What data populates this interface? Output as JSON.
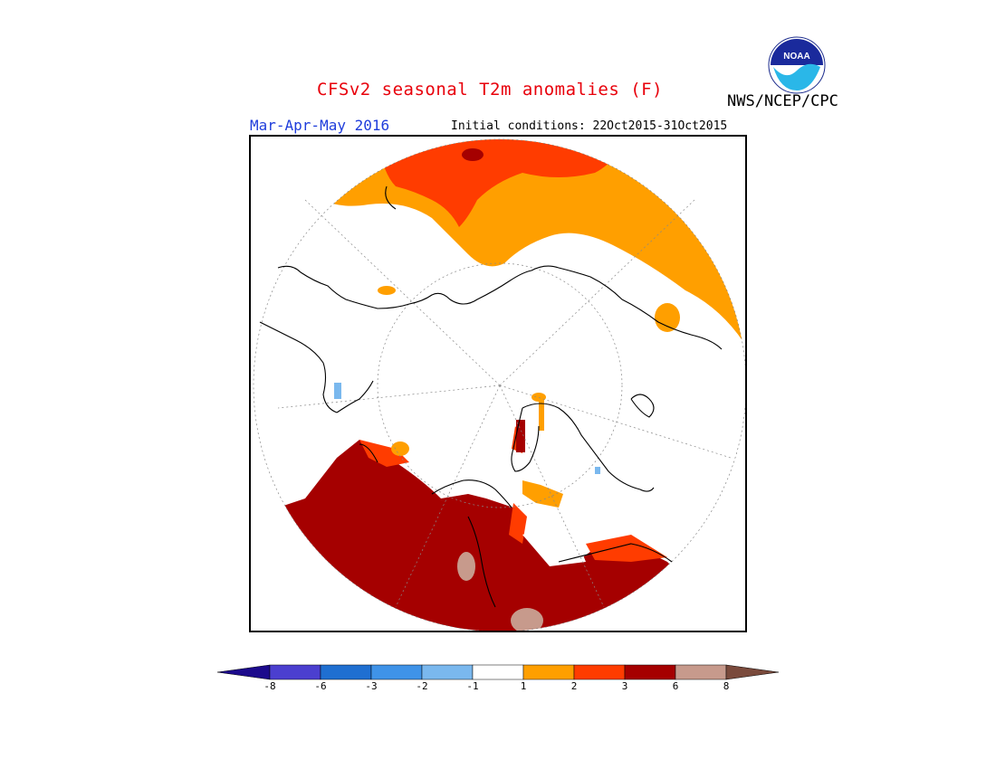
{
  "header": {
    "title": "CFSv2 seasonal T2m anomalies (F)",
    "agency": "NWS/NCEP/CPC",
    "logo_text": "NOAA",
    "season": "Mar-Apr-May 2016",
    "initial_conditions": "Initial conditions: 22Oct2015-31Oct2015"
  },
  "legend": {
    "ticks": [
      "-8",
      "-6",
      "-3",
      "-2",
      "-1",
      "1",
      "2",
      "3",
      "6",
      "8"
    ],
    "colors": [
      "#1c0a8c",
      "#4b3fcf",
      "#1f6fd1",
      "#3f93e8",
      "#7ab8ee",
      "#ffffff",
      "#ff9f00",
      "#ff3c00",
      "#a50000",
      "#c79a8c",
      "#7a4a3c"
    ]
  },
  "map": {
    "projection": "north-polar-stereographic",
    "anomaly_regions": [
      {
        "region": "eastern-north-america-east-canada",
        "category": "2 to 3 F"
      },
      {
        "region": "greenland-north-atlantic-edge",
        "category": "1 to 2 F"
      },
      {
        "region": "northern-europe-scandinavia",
        "category": "1 to 2 F"
      },
      {
        "region": "western-siberia-russia",
        "category": "3 to 6 F"
      },
      {
        "region": "central-east-asia",
        "category": "3 to 8 F"
      },
      {
        "region": "alaska-bering",
        "category": "-1 to 1 F"
      },
      {
        "region": "pacific-northwest-patch",
        "category": "-2 to -1 F"
      }
    ]
  }
}
